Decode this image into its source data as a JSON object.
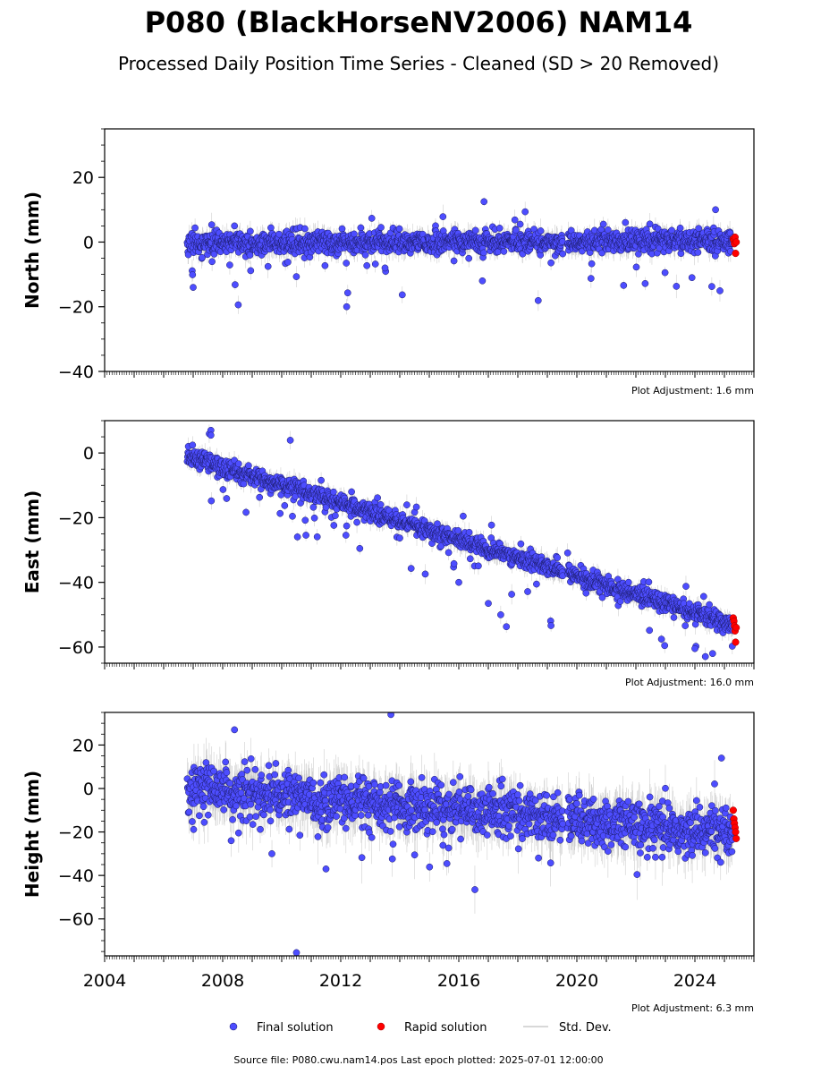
{
  "title": "P080 (BlackHorseNV2006) NAM14",
  "subtitle": "Processed Daily Position Time Series - Cleaned (SD > 20 Removed)",
  "source": "Source file: P080.cwu.nam14.pos  Last epoch plotted: 2025-07-01 12:00:00",
  "legend": {
    "final": "Final solution",
    "rapid": "Rapid solution",
    "std": "Std. Dev."
  },
  "colors": {
    "final": "#4d4dff",
    "final_edge": "#1a1a66",
    "rapid": "#ff0000",
    "std": "#bbbbbb"
  },
  "chart_data": [
    {
      "type": "scatter",
      "ylabel": "North (mm)",
      "adjustment": "Plot Adjustment: 1.6 mm",
      "xlim": [
        2004,
        2026
      ],
      "ylim": [
        -40,
        35
      ],
      "yticks": [
        20,
        0,
        -20,
        -40
      ],
      "ytick_labels": [
        "20",
        "0",
        "−20",
        "−40"
      ],
      "trend": {
        "start_year": 2006.8,
        "start_value": -0.5,
        "end_year": 2025.3,
        "end_value": 0.5,
        "step_at": 2019.6,
        "step": 0
      },
      "scatter_sd": 1.6,
      "outlier_spread": 9,
      "outliers": [
        [
          2007.0,
          -14.0
        ],
        [
          2013.5,
          -8.0
        ],
        [
          2016.8,
          -12.0
        ],
        [
          2023.9,
          -11.0
        ],
        [
          2024.7,
          10.0
        ],
        [
          2008.4,
          5.0
        ]
      ],
      "rapid": [
        [
          2025.3,
          1.0
        ],
        [
          2025.32,
          0.5
        ],
        [
          2025.34,
          -0.5
        ],
        [
          2025.36,
          1.5
        ],
        [
          2025.38,
          -3.5
        ],
        [
          2025.4,
          0.0
        ]
      ]
    },
    {
      "type": "scatter",
      "ylabel": "East (mm)",
      "adjustment": "Plot Adjustment: 16.0 mm",
      "xlim": [
        2004,
        2026
      ],
      "ylim": [
        -65,
        10
      ],
      "yticks": [
        0,
        -20,
        -40,
        -60
      ],
      "ytick_labels": [
        "0",
        "−20",
        "−40",
        "−60"
      ],
      "trend": {
        "start_year": 2006.8,
        "start_value": -1,
        "end_year": 2025.3,
        "end_value": -53,
        "step_at": 2019.6,
        "step": 0
      },
      "scatter_sd": 1.4,
      "outlier_spread": 9,
      "outliers": [
        [
          2007.6,
          7.0
        ],
        [
          2007.6,
          5.5
        ],
        [
          2016.0,
          -40.0
        ],
        [
          2017.0,
          -46.5
        ],
        [
          2024.0,
          -60.5
        ],
        [
          2024.6,
          -62.0
        ]
      ],
      "rapid": [
        [
          2025.3,
          -51.0
        ],
        [
          2025.32,
          -52.0
        ],
        [
          2025.34,
          -53.5
        ],
        [
          2025.36,
          -55.0
        ],
        [
          2025.38,
          -58.5
        ],
        [
          2025.4,
          -54.0
        ]
      ]
    },
    {
      "type": "scatter",
      "ylabel": "Height (mm)",
      "adjustment": "Plot Adjustment: 6.3 mm",
      "xlim": [
        2004,
        2026
      ],
      "xticks": [
        2004,
        2008,
        2012,
        2016,
        2020,
        2024
      ],
      "xtick_labels": [
        "2004",
        "2008",
        "2012",
        "2016",
        "2020",
        "2024"
      ],
      "ylim": [
        -77,
        35
      ],
      "yticks": [
        20,
        0,
        -20,
        -40,
        -60
      ],
      "ytick_labels": [
        "20",
        "0",
        "−20",
        "−40",
        "−60"
      ],
      "trend": {
        "start_year": 2006.8,
        "start_value": 0,
        "end_year": 2025.3,
        "end_value": -20,
        "step_at": 2019.6,
        "step": 0
      },
      "scatter_sd": 5.5,
      "outlier_spread": 14,
      "outliers": [
        [
          2008.4,
          27.0
        ],
        [
          2013.7,
          34.0
        ],
        [
          2011.5,
          -37.0
        ],
        [
          2010.5,
          -75.5
        ],
        [
          2018.7,
          -32.0
        ],
        [
          2024.9,
          14.0
        ]
      ],
      "rapid": [
        [
          2025.3,
          -10.0
        ],
        [
          2025.32,
          -14.0
        ],
        [
          2025.34,
          -16.0
        ],
        [
          2025.36,
          -18.0
        ],
        [
          2025.38,
          -20.0
        ],
        [
          2025.4,
          -23.0
        ]
      ]
    }
  ]
}
